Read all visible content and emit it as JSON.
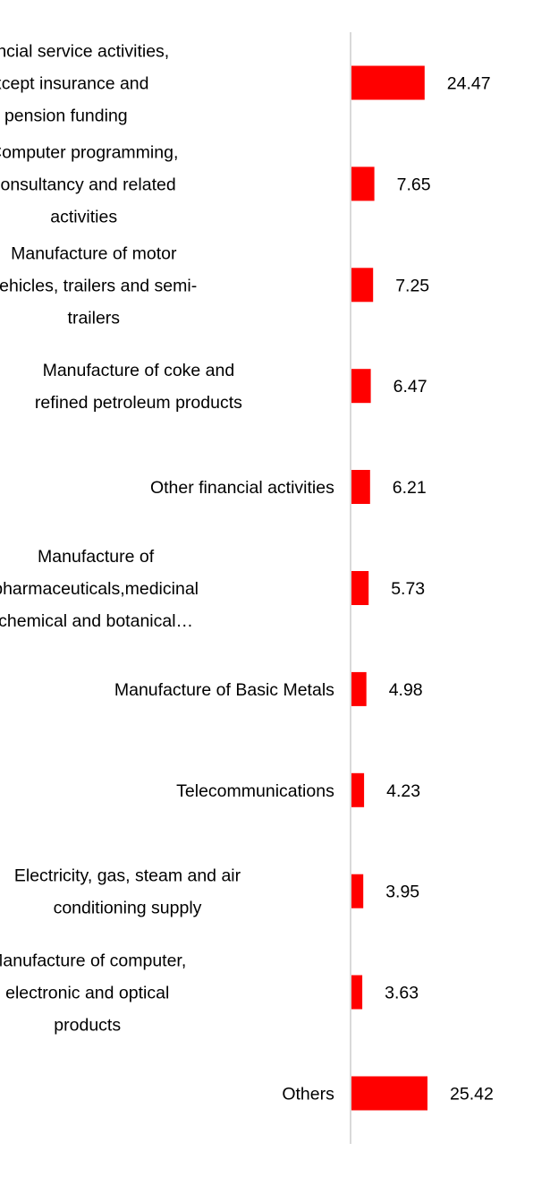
{
  "chart_data": {
    "type": "bar",
    "orientation": "horizontal",
    "categories": [
      [
        "Financial service activities,",
        "except insurance and",
        "pension funding"
      ],
      [
        "Computer programming,",
        "consultancy and related",
        "activities"
      ],
      [
        "Manufacture of motor",
        "vehicles, trailers and semi-",
        "trailers"
      ],
      [
        "Manufacture of coke and",
        "refined petroleum products"
      ],
      [
        "Other financial activities"
      ],
      [
        "Manufacture of",
        "pharmaceuticals,medicinal",
        "chemical and botanical…"
      ],
      [
        "Manufacture of Basic Metals"
      ],
      [
        "Telecommunications"
      ],
      [
        "Electricity, gas, steam and air",
        "conditioning supply"
      ],
      [
        "Manufacture of computer,",
        "electronic and optical",
        "products"
      ],
      [
        "Others"
      ]
    ],
    "values": [
      24.47,
      7.65,
      7.25,
      6.47,
      6.21,
      5.73,
      4.98,
      4.23,
      3.95,
      3.63,
      25.42
    ],
    "data_labels": [
      "24.47",
      "7.65",
      "7.25",
      "6.47",
      "6.21",
      "5.73",
      "4.98",
      "4.23",
      "3.95",
      "3.63",
      "25.42"
    ],
    "bar_color": "#ff0000",
    "axis_color": "#d9d9d9",
    "xlim": [
      0,
      25.42
    ],
    "grid": false,
    "legend": "none",
    "title": "",
    "xlabel": "",
    "ylabel": ""
  }
}
